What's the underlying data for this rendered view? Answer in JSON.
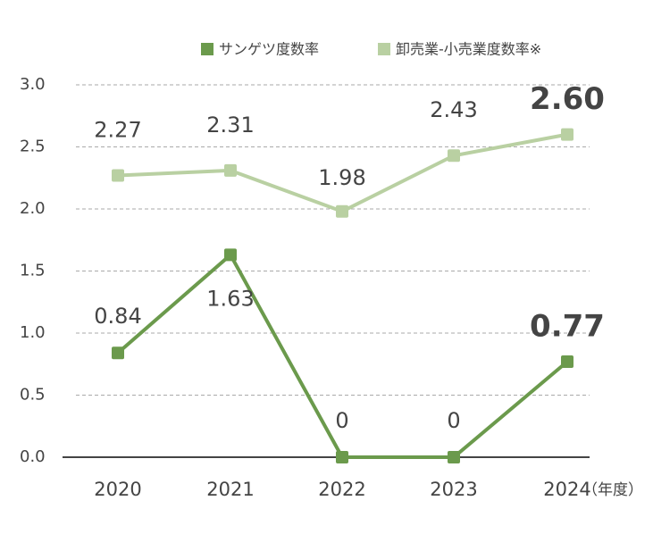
{
  "chart_data": {
    "type": "line",
    "categories": [
      "2020",
      "2021",
      "2022",
      "2023",
      "2024"
    ],
    "x_label": "（年度）",
    "series": [
      {
        "name": "サンゲツ度数率",
        "color": "#6b9a4c",
        "values": [
          0.84,
          1.63,
          0,
          0,
          0.77
        ]
      },
      {
        "name": "卸売業-小売業度数率※",
        "color": "#b9d0a2",
        "values": [
          2.27,
          2.31,
          1.98,
          2.43,
          2.6
        ],
        "value_labels": [
          "2.27",
          "2.31",
          "1.98",
          "2.43",
          "2.60"
        ]
      }
    ],
    "highlight_colors": [
      "#6b9a4c",
      "#a8c466"
    ],
    "ylim": [
      0,
      3
    ],
    "yticks": [
      {
        "value": 0,
        "label": "0.0"
      },
      {
        "value": 0.5,
        "label": "0.5"
      },
      {
        "value": 1,
        "label": "1.0"
      },
      {
        "value": 1.5,
        "label": "1.5"
      },
      {
        "value": 2,
        "label": "2.0"
      },
      {
        "value": 2.5,
        "label": "2.5"
      },
      {
        "value": 3,
        "label": "3.0"
      }
    ],
    "grid": true
  }
}
